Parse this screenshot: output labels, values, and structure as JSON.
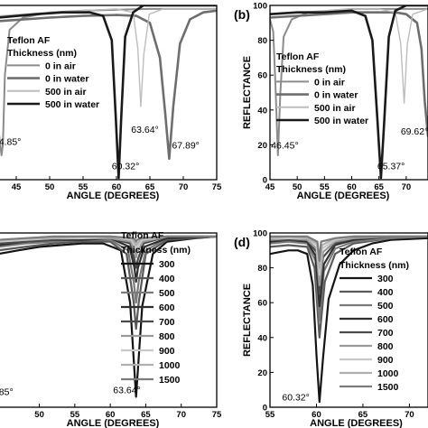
{
  "chart_data": [
    {
      "id": "a",
      "type": "line",
      "panel_label": "",
      "xlabel": "ANGLE (DEGREES)",
      "ylabel": "",
      "xlim": [
        42.3,
        75
      ],
      "ylim": [
        0,
        100
      ],
      "xticks": [
        "45",
        "50",
        "55",
        "60",
        "65",
        "70",
        "75"
      ],
      "yticks": [],
      "legend_title": [
        "Teflon AF",
        "Thickness (nm)"
      ],
      "series": [
        {
          "name": "0      in air",
          "color": "#8c8c8c",
          "width": 2.0,
          "x": [
            42.3,
            42.8,
            43.0,
            43.3,
            44.0,
            46,
            50,
            55,
            60,
            65,
            70,
            75
          ],
          "y": [
            30,
            14,
            20,
            60,
            86,
            93,
            96,
            97,
            97.5,
            98,
            98,
            98
          ]
        },
        {
          "name": "0      in water",
          "color": "#6e6e6e",
          "width": 2.6,
          "x": [
            42.3,
            50,
            55,
            60,
            63,
            65,
            66.5,
            67.3,
            67.89,
            68.5,
            69.5,
            71,
            73,
            75
          ],
          "y": [
            91,
            93,
            94,
            94.5,
            94,
            90,
            70,
            38,
            12,
            42,
            78,
            92,
            96,
            97
          ]
        },
        {
          "name": "500 in air",
          "color": "#bdbdbd",
          "width": 1.4,
          "x": [
            42.3,
            50,
            55,
            60,
            62.5,
            63.2,
            63.64,
            64.1,
            64.9,
            67,
            70,
            75
          ],
          "y": [
            94,
            96,
            97,
            98,
            96,
            75,
            42,
            72,
            95,
            98,
            98,
            98
          ]
        },
        {
          "name": "500 in water",
          "color": "#1a1a1a",
          "width": 2.6,
          "x": [
            42.3,
            48,
            52,
            56,
            58,
            59.3,
            59.9,
            60.32,
            60.7,
            61.3,
            62.5,
            64,
            66,
            70,
            75
          ],
          "y": [
            93,
            95,
            96,
            96,
            94,
            80,
            35,
            1,
            35,
            82,
            96,
            100,
            100,
            100,
            100
          ]
        }
      ],
      "annotations": [
        "4.85°",
        "60.32°",
        "63.64°",
        "67.89°"
      ]
    },
    {
      "id": "b",
      "type": "line",
      "panel_label": "(b)",
      "xlabel": "ANGLE (DEGREES)",
      "ylabel": "REFLECTANCE",
      "xlim": [
        45,
        74
      ],
      "ylim": [
        0,
        100
      ],
      "xticks": [
        "45",
        "50",
        "55",
        "60",
        "65",
        "70"
      ],
      "yticks": [
        "0",
        "20",
        "40",
        "60",
        "80",
        "100"
      ],
      "legend_title": [
        "Teflon AF",
        "Thickness (nm)"
      ],
      "series": [
        {
          "name": "0      in air",
          "color": "#8c8c8c",
          "width": 2.0,
          "x": [
            45,
            45.6,
            46.0,
            46.45,
            46.9,
            47.5,
            49,
            52,
            56,
            60,
            65,
            70,
            74
          ],
          "y": [
            92,
            85,
            55,
            14,
            50,
            82,
            92,
            96,
            97,
            98,
            98,
            98,
            98
          ]
        },
        {
          "name": "0      in water",
          "color": "#6e6e6e",
          "width": 2.6,
          "x": [
            45,
            50,
            55,
            60,
            65,
            68,
            70,
            72,
            72.8,
            73.4,
            74
          ],
          "y": [
            93,
            94,
            95,
            96,
            96,
            96,
            95,
            90,
            75,
            45,
            25
          ]
        },
        {
          "name": "500 in air",
          "color": "#bdbdbd",
          "width": 1.4,
          "x": [
            45,
            50,
            55,
            60,
            65,
            68,
            69.0,
            69.62,
            70.2,
            71.2,
            74
          ],
          "y": [
            95,
            96,
            97,
            98,
            98,
            96,
            78,
            44,
            78,
            95,
            98
          ]
        },
        {
          "name": "500 in water",
          "color": "#1a1a1a",
          "width": 2.6,
          "x": [
            45,
            50,
            55,
            60,
            62.5,
            63.8,
            64.7,
            65.37,
            66.0,
            66.8,
            68,
            70,
            74
          ],
          "y": [
            95,
            96,
            96,
            97,
            94,
            80,
            35,
            1,
            35,
            82,
            97,
            100,
            100
          ]
        }
      ],
      "annotations": [
        "46.45°",
        "65.37°",
        "69.62°"
      ]
    },
    {
      "id": "c",
      "type": "line",
      "panel_label": "",
      "xlabel": "ANGLE (DEGREES)",
      "ylabel": "",
      "xlim": [
        44.2,
        75
      ],
      "ylim": [
        0,
        100
      ],
      "xticks": [
        "50",
        "55",
        "60",
        "65",
        "70",
        "75"
      ],
      "yticks": [],
      "legend_title": [
        "Teflon AF",
        "Thickness (nm)"
      ],
      "series": [
        {
          "name": "300",
          "color": "#141414",
          "width": 2.2,
          "x": [
            44.2,
            47,
            50,
            53,
            56,
            59,
            61.5,
            62.8,
            63.64,
            64.5,
            66,
            68,
            72,
            75
          ],
          "y": [
            88,
            90,
            92,
            93,
            94,
            94,
            90,
            60,
            6,
            58,
            88,
            95,
            97,
            98
          ]
        },
        {
          "name": "400",
          "color": "#5a5a5a",
          "width": 2.2,
          "x": [
            44.2,
            48,
            52,
            56,
            60,
            62.3,
            63.3,
            63.64,
            64.0,
            65,
            68,
            75
          ],
          "y": [
            90,
            92,
            94,
            95,
            95,
            88,
            60,
            45,
            60,
            88,
            96,
            98
          ]
        },
        {
          "name": "500",
          "color": "#7a7a7a",
          "width": 2.2,
          "x": [
            44.2,
            48,
            52,
            56,
            60,
            62.5,
            63.3,
            63.64,
            64.0,
            65,
            68,
            75
          ],
          "y": [
            92,
            94,
            95,
            96,
            96,
            90,
            72,
            60,
            72,
            90,
            97,
            98
          ]
        },
        {
          "name": "600",
          "color": "#2e2e2e",
          "width": 2.2,
          "x": [
            44.2,
            48,
            52,
            56,
            60,
            62.7,
            63.4,
            63.64,
            63.9,
            64.8,
            68,
            75
          ],
          "y": [
            93,
            95,
            96,
            96,
            97,
            92,
            80,
            72,
            80,
            92,
            97,
            98
          ]
        },
        {
          "name": "700",
          "color": "#4a4a4a",
          "width": 2.2,
          "x": [
            44.2,
            48,
            52,
            56,
            60,
            62.8,
            63.4,
            63.64,
            63.9,
            64.7,
            68,
            75
          ],
          "y": [
            94,
            95,
            96,
            97,
            97,
            94,
            85,
            80,
            85,
            94,
            98,
            98
          ]
        },
        {
          "name": "800",
          "color": "#9a9a9a",
          "width": 2.2,
          "x": [
            44.2,
            48,
            52,
            56,
            60,
            62.9,
            63.5,
            63.64,
            63.8,
            64.6,
            68,
            75
          ],
          "y": [
            95,
            96,
            97,
            97,
            97,
            95,
            89,
            86,
            89,
            95,
            98,
            98
          ]
        },
        {
          "name": "900",
          "color": "#c8c8c8",
          "width": 2.2,
          "x": [
            44.2,
            48,
            52,
            56,
            60,
            63.0,
            63.5,
            63.64,
            63.8,
            64.5,
            68,
            75
          ],
          "y": [
            95,
            96,
            97,
            97,
            98,
            96,
            92,
            90,
            92,
            96,
            98,
            98
          ]
        },
        {
          "name": "1000",
          "color": "#b0b0b0",
          "width": 2.2,
          "x": [
            44.2,
            48,
            52,
            56,
            60,
            63.1,
            63.5,
            63.64,
            63.8,
            64.4,
            68,
            75
          ],
          "y": [
            96,
            97,
            97,
            98,
            98,
            97,
            94,
            93,
            94,
            97,
            98,
            98
          ]
        },
        {
          "name": "1500",
          "color": "#7c7c7c",
          "width": 2.2,
          "x": [
            44.2,
            48,
            52,
            56,
            60,
            63.2,
            63.55,
            63.64,
            63.75,
            64.3,
            68,
            75
          ],
          "y": [
            96,
            97,
            98,
            98,
            98,
            97,
            96,
            95,
            96,
            97,
            98,
            98
          ]
        }
      ],
      "annotations": [
        "85°",
        "63.64°"
      ]
    },
    {
      "id": "d",
      "type": "line",
      "panel_label": "(d)",
      "xlabel": "ANGLE (DEGREES)",
      "ylabel": "REFLECTANCE",
      "xlim": [
        55,
        72
      ],
      "ylim": [
        0,
        100
      ],
      "xticks": [
        "55",
        "60",
        "65",
        "70"
      ],
      "yticks": [
        "0",
        "20",
        "40",
        "60",
        "80",
        "100"
      ],
      "legend_title": [
        "Teflon AF",
        "Thickness (nm)"
      ],
      "series": [
        {
          "name": "300",
          "color": "#141414",
          "width": 2.2,
          "x": [
            55,
            56,
            57,
            58,
            59,
            59.6,
            60.0,
            60.32,
            60.7,
            61.3,
            62.5,
            64,
            66,
            68,
            72
          ],
          "y": [
            88,
            89,
            90,
            90,
            88,
            70,
            30,
            3,
            28,
            62,
            82,
            90,
            94,
            96,
            97
          ]
        },
        {
          "name": "400",
          "color": "#5a5a5a",
          "width": 2.2,
          "x": [
            55,
            57,
            59,
            59.8,
            60.32,
            60.9,
            62,
            64,
            68,
            72
          ],
          "y": [
            92,
            93,
            92,
            80,
            40,
            72,
            88,
            94,
            97,
            98
          ]
        },
        {
          "name": "500",
          "color": "#7a7a7a",
          "width": 2.2,
          "x": [
            55,
            57,
            59,
            59.9,
            60.32,
            60.8,
            62,
            64,
            68,
            72
          ],
          "y": [
            94,
            95,
            94,
            84,
            50,
            78,
            91,
            95,
            97,
            98
          ]
        },
        {
          "name": "600",
          "color": "#2e2e2e",
          "width": 2.2,
          "x": [
            55,
            57,
            59,
            59.9,
            60.32,
            60.8,
            62,
            64,
            68,
            72
          ],
          "y": [
            95,
            96,
            95,
            87,
            58,
            82,
            93,
            96,
            98,
            98
          ]
        },
        {
          "name": "700",
          "color": "#4a4a4a",
          "width": 2.2,
          "x": [
            55,
            57,
            59,
            60.0,
            60.32,
            60.7,
            62,
            64,
            68,
            72
          ],
          "y": [
            96,
            96,
            96,
            89,
            65,
            86,
            94,
            97,
            98,
            98
          ]
        },
        {
          "name": "800",
          "color": "#9a9a9a",
          "width": 2.2,
          "x": [
            55,
            57,
            59,
            60.0,
            60.32,
            60.7,
            62,
            64,
            68,
            72
          ],
          "y": [
            96,
            97,
            96,
            91,
            70,
            89,
            95,
            97,
            98,
            98
          ]
        },
        {
          "name": "900",
          "color": "#c8c8c8",
          "width": 2.2,
          "x": [
            55,
            57,
            59,
            60.0,
            60.32,
            60.6,
            62,
            64,
            68,
            72
          ],
          "y": [
            97,
            97,
            97,
            93,
            76,
            91,
            96,
            98,
            98,
            98
          ]
        },
        {
          "name": "1000",
          "color": "#b0b0b0",
          "width": 2.2,
          "x": [
            55,
            57,
            59,
            60.1,
            60.32,
            60.6,
            62,
            64,
            68,
            72
          ],
          "y": [
            97,
            98,
            97,
            94,
            80,
            93,
            97,
            98,
            98,
            98
          ]
        },
        {
          "name": "1500",
          "color": "#7c7c7c",
          "width": 2.2,
          "x": [
            55,
            57,
            59,
            60.1,
            60.32,
            60.5,
            62,
            64,
            68,
            72
          ],
          "y": [
            98,
            98,
            98,
            95,
            84,
            95,
            97,
            98,
            98,
            98
          ]
        }
      ],
      "annotations": [
        "60.32°"
      ]
    }
  ]
}
